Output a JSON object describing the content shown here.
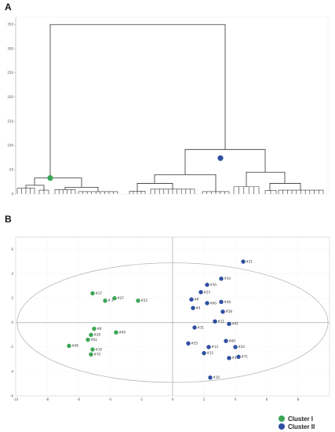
{
  "panels": {
    "a_letter": "A",
    "b_letter": "B"
  },
  "colors": {
    "cluster1": "#3aa655",
    "cluster2": "#2f4fa0",
    "line": "#333333",
    "grid": "#dddddd",
    "ellipse": "#b8b8b8"
  },
  "chart_data": [
    {
      "type": "dendrogram",
      "title": "",
      "ylabel": "",
      "xlabel": "",
      "y_ticks": [
        0,
        50,
        100,
        150,
        200,
        250,
        300,
        350
      ],
      "ylim": [
        0,
        365
      ],
      "root_height": 350,
      "cluster_nodes": [
        {
          "name": "Cluster I",
          "height": 33
        },
        {
          "name": "Cluster II",
          "height": 92
        }
      ]
    },
    {
      "type": "scatter",
      "title": "",
      "xlabel": "",
      "ylabel": "",
      "xlim": [
        -10,
        10
      ],
      "ylim": [
        -6,
        7
      ],
      "x_ticks": [
        -10,
        -8,
        -6,
        -4,
        -2,
        0,
        2,
        4,
        6,
        8
      ],
      "y_ticks": [
        -6,
        -4,
        -2,
        0,
        2,
        4,
        6
      ],
      "ellipse": {
        "cx": 0,
        "cy": 0,
        "rx": 9.9,
        "ry": 4.9
      },
      "legend_position": "bottom-right",
      "series": [
        {
          "name": "Cluster I",
          "color": "#3aa655",
          "points": [
            {
              "label": "#17",
              "x": -5.1,
              "y": 2.4
            },
            {
              "label": "#27",
              "x": -3.7,
              "y": 2.0
            },
            {
              "label": "# 2",
              "x": -4.3,
              "y": 1.8
            },
            {
              "label": "#22",
              "x": -2.2,
              "y": 1.8
            },
            {
              "label": "#8",
              "x": -5.0,
              "y": -0.5
            },
            {
              "label": "#69",
              "x": -3.6,
              "y": -0.8
            },
            {
              "label": "#28",
              "x": -5.2,
              "y": -1.0
            },
            {
              "label": "#61",
              "x": -5.4,
              "y": -1.4
            },
            {
              "label": "#49",
              "x": -6.6,
              "y": -1.9
            },
            {
              "label": "#19",
              "x": -5.1,
              "y": -2.2
            },
            {
              "label": "#70",
              "x": -5.2,
              "y": -2.6
            }
          ]
        },
        {
          "name": "Cluster II",
          "color": "#2f4fa0",
          "points": [
            {
              "label": "#21",
              "x": 4.5,
              "y": 5.0
            },
            {
              "label": "#34",
              "x": 3.1,
              "y": 3.6
            },
            {
              "label": "#30",
              "x": 2.2,
              "y": 3.1
            },
            {
              "label": "#23",
              "x": 1.8,
              "y": 2.5
            },
            {
              "label": "#8",
              "x": 1.2,
              "y": 1.9
            },
            {
              "label": "#60",
              "x": 2.2,
              "y": 1.6
            },
            {
              "label": "#48",
              "x": 3.1,
              "y": 1.7
            },
            {
              "label": "#4",
              "x": 1.3,
              "y": 1.2
            },
            {
              "label": "#58",
              "x": 3.2,
              "y": 0.9
            },
            {
              "label": "#11",
              "x": 2.7,
              "y": 0.1
            },
            {
              "label": "#41",
              "x": 3.6,
              "y": -0.1
            },
            {
              "label": "#31",
              "x": 1.4,
              "y": -0.4
            },
            {
              "label": "#60",
              "x": 3.4,
              "y": -1.5
            },
            {
              "label": "#55",
              "x": 1.0,
              "y": -1.7
            },
            {
              "label": "#13",
              "x": 2.3,
              "y": -2.0
            },
            {
              "label": "#20",
              "x": 4.0,
              "y": -2.0
            },
            {
              "label": "#15",
              "x": 2.0,
              "y": -2.5
            },
            {
              "label": "#71",
              "x": 4.2,
              "y": -2.8
            },
            {
              "label": "#3",
              "x": 3.6,
              "y": -2.9
            },
            {
              "label": "#10",
              "x": 2.4,
              "y": -4.5
            }
          ]
        }
      ]
    }
  ]
}
